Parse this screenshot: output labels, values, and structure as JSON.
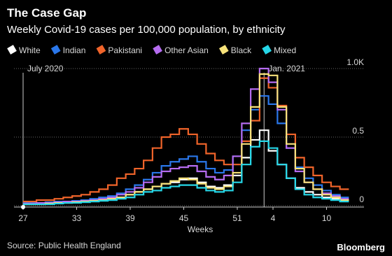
{
  "chart_data": {
    "type": "line",
    "step": true,
    "title": "The Case Gap",
    "subtitle": "Weekly Covid-19 cases per 100,000 population, by ethnicity",
    "x_label": "Weeks",
    "source": "Source: Public Health England",
    "brand": "Bloomberg",
    "annotations": [
      "July 2020",
      "Jan. 2021"
    ],
    "categories": [
      "27",
      null,
      null,
      null,
      null,
      null,
      "33",
      null,
      null,
      null,
      null,
      null,
      "39",
      null,
      null,
      null,
      null,
      null,
      "45",
      null,
      null,
      null,
      null,
      null,
      "51",
      null,
      null,
      null,
      "4",
      null,
      null,
      null,
      null,
      null,
      "10",
      null,
      null
    ],
    "ylim": [
      0,
      1.0
    ],
    "yticks": [
      0,
      0.5,
      {
        "value": 1.0,
        "label": "1.0K"
      }
    ],
    "grid": true,
    "series": [
      {
        "name": "White",
        "color": "#ffffff",
        "values": [
          0.01,
          0.01,
          0.01,
          0.015,
          0.02,
          0.02,
          0.025,
          0.03,
          0.035,
          0.04,
          0.05,
          0.06,
          0.08,
          0.1,
          0.12,
          0.14,
          0.16,
          0.17,
          0.19,
          0.2,
          0.17,
          0.14,
          0.13,
          0.15,
          0.22,
          0.35,
          0.48,
          0.55,
          0.4,
          0.3,
          0.2,
          0.13,
          0.1,
          0.08,
          0.06,
          0.05,
          0.04
        ]
      },
      {
        "name": "Indian",
        "color": "#2a77ea",
        "values": [
          0.02,
          0.02,
          0.02,
          0.025,
          0.03,
          0.03,
          0.035,
          0.04,
          0.05,
          0.06,
          0.07,
          0.09,
          0.12,
          0.15,
          0.19,
          0.24,
          0.29,
          0.32,
          0.34,
          0.36,
          0.32,
          0.27,
          0.24,
          0.26,
          0.36,
          0.55,
          0.7,
          0.8,
          0.74,
          0.6,
          0.42,
          0.28,
          0.2,
          0.15,
          0.11,
          0.08,
          0.06
        ]
      },
      {
        "name": "Pakistani",
        "color": "#f0642a",
        "values": [
          0.03,
          0.03,
          0.04,
          0.04,
          0.05,
          0.06,
          0.07,
          0.08,
          0.1,
          0.12,
          0.15,
          0.2,
          0.23,
          0.27,
          0.33,
          0.42,
          0.5,
          0.52,
          0.56,
          0.52,
          0.45,
          0.38,
          0.33,
          0.3,
          0.3,
          0.47,
          0.62,
          0.93,
          0.86,
          0.73,
          0.52,
          0.35,
          0.28,
          0.22,
          0.17,
          0.14,
          0.12
        ]
      },
      {
        "name": "Other Asian",
        "color": "#b56cf0",
        "values": [
          0.015,
          0.015,
          0.02,
          0.02,
          0.025,
          0.03,
          0.03,
          0.035,
          0.04,
          0.05,
          0.06,
          0.08,
          0.1,
          0.13,
          0.17,
          0.21,
          0.25,
          0.27,
          0.28,
          0.29,
          0.25,
          0.21,
          0.19,
          0.22,
          0.36,
          0.6,
          0.85,
          1.0,
          0.9,
          0.7,
          0.42,
          0.25,
          0.17,
          0.12,
          0.09,
          0.07,
          0.05
        ]
      },
      {
        "name": "Black",
        "color": "#f7e27a",
        "values": [
          0.01,
          0.01,
          0.01,
          0.015,
          0.02,
          0.02,
          0.025,
          0.03,
          0.035,
          0.04,
          0.05,
          0.06,
          0.08,
          0.1,
          0.12,
          0.14,
          0.16,
          0.18,
          0.2,
          0.19,
          0.16,
          0.13,
          0.12,
          0.14,
          0.24,
          0.45,
          0.72,
          0.96,
          0.95,
          0.72,
          0.45,
          0.27,
          0.17,
          0.12,
          0.08,
          0.06,
          0.04
        ]
      },
      {
        "name": "Mixed",
        "color": "#26d7e8",
        "values": [
          0.01,
          0.01,
          0.01,
          0.01,
          0.015,
          0.02,
          0.02,
          0.025,
          0.03,
          0.035,
          0.04,
          0.05,
          0.06,
          0.08,
          0.1,
          0.11,
          0.13,
          0.14,
          0.15,
          0.15,
          0.13,
          0.11,
          0.1,
          0.11,
          0.17,
          0.3,
          0.43,
          0.47,
          0.42,
          0.3,
          0.2,
          0.12,
          0.08,
          0.06,
          0.05,
          0.04,
          0.03
        ]
      }
    ]
  }
}
